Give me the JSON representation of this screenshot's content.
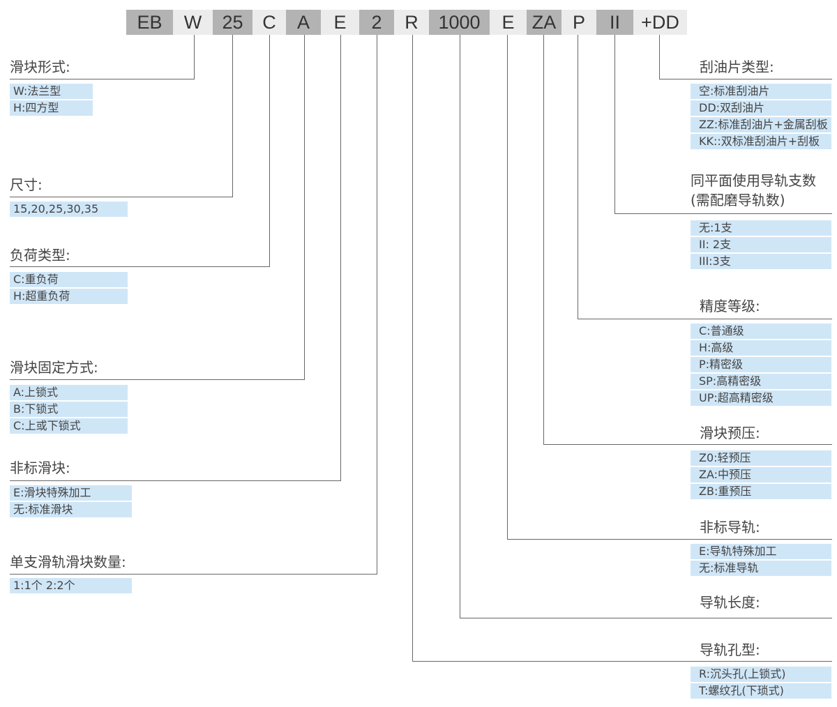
{
  "code_segments": [
    "EB",
    "W",
    "25",
    "C",
    "A",
    "E",
    "2",
    "R",
    "1000",
    "E",
    "ZA",
    "P",
    "II",
    "+DD"
  ],
  "colors": {
    "segment_dark": "#b3b3b3",
    "segment_light": "#ececec",
    "option_bg": "#cfe6f7",
    "line": "#666666"
  },
  "left_groups": [
    {
      "title": "滑块形式:",
      "items": [
        "W:法兰型",
        "H:四方型"
      ]
    },
    {
      "title": "尺寸:",
      "items": [
        "15,20,25,30,35"
      ]
    },
    {
      "title": "负荷类型:",
      "items": [
        "C:重负荷",
        "H:超重负荷"
      ]
    },
    {
      "title": "滑块固定方式:",
      "items": [
        "A:上锁式",
        "B:下锁式",
        "C:上或下锁式"
      ]
    },
    {
      "title": "非标滑块:",
      "items": [
        "E:滑块特殊加工",
        "无:标准滑块"
      ]
    },
    {
      "title": "单支滑轨滑块数量:",
      "items": [
        "1:1个    2:2个"
      ]
    }
  ],
  "right_groups": [
    {
      "title": "刮油片类型:",
      "items": [
        "空:标准刮油片",
        "DD:双刮油片",
        "ZZ:标准刮油片+金属刮板",
        "KK::双标准刮油片+刮板"
      ]
    },
    {
      "title": "同平面使用导轨支数",
      "title2": "(需配磨导轨数)",
      "items": [
        "无:1支",
        "II: 2支",
        "III:3支"
      ]
    },
    {
      "title": "精度等级:",
      "items": [
        "C:普通级",
        "H:高级",
        "P:精密级",
        "SP:高精密级",
        "UP:超高精密级"
      ]
    },
    {
      "title": "滑块预压:",
      "items": [
        "Z0:轻预压",
        "ZA:中预压",
        "ZB:重预压"
      ]
    },
    {
      "title": "非标导轨:",
      "items": [
        "E:导轨特殊加工",
        "无:标准导轨"
      ]
    },
    {
      "title": "导轨长度:",
      "items": []
    },
    {
      "title": "导轨孔型:",
      "items": [
        "R:沉头孔(上锁式)",
        "T:螺纹孔(下琐式)"
      ]
    }
  ]
}
